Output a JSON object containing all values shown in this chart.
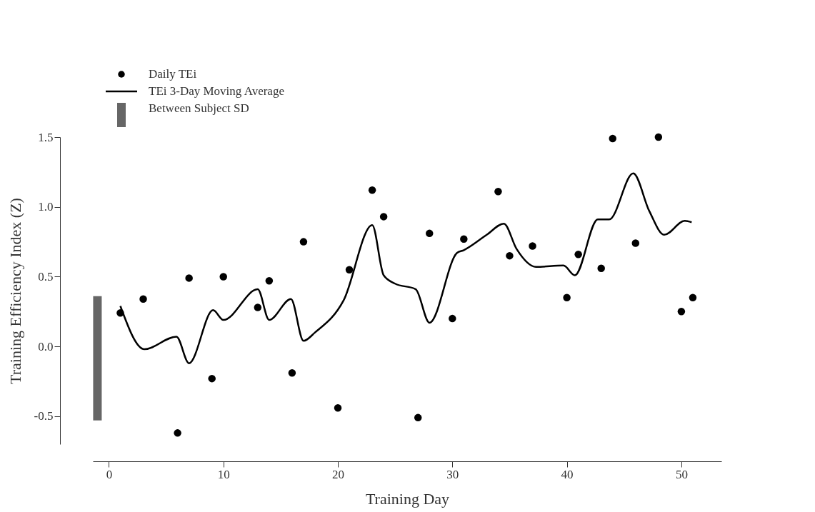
{
  "chart_data": {
    "type": "scatter",
    "xlabel": "Training Day",
    "ylabel": "Training Efficiency Index (Z)",
    "xlim": [
      -1.4,
      53.5
    ],
    "ylim": [
      -0.7,
      1.5
    ],
    "xticks": [
      0,
      10,
      20,
      30,
      40,
      50
    ],
    "yticks": [
      {
        "value": -0.5,
        "label": "-0.5"
      },
      {
        "value": 0,
        "label": "0.0"
      },
      {
        "value": 0.5,
        "label": "0.5"
      },
      {
        "value": 1,
        "label": "1.0"
      },
      {
        "value": 1.5,
        "label": "1.5"
      }
    ],
    "grid": false,
    "legend": "top left",
    "series": [
      {
        "name": "Daily TEi",
        "marker": "circle",
        "color": "#000000",
        "x": [
          1,
          3,
          6,
          7,
          9,
          10,
          13,
          14,
          16,
          17,
          20,
          21,
          23,
          24,
          27,
          28,
          30,
          31,
          34,
          35,
          37,
          40,
          41,
          43,
          44,
          46,
          48,
          50,
          51
        ],
        "values": [
          0.24,
          0.34,
          -0.62,
          0.49,
          -0.23,
          0.5,
          0.28,
          0.47,
          -0.19,
          0.75,
          -0.44,
          0.55,
          1.12,
          0.93,
          -0.51,
          0.81,
          0.2,
          0.77,
          1.11,
          0.65,
          0.72,
          0.35,
          0.66,
          0.56,
          1.49,
          0.74,
          1.5,
          0.25,
          0.35
        ]
      },
      {
        "name": "TEi 3-Day Moving Average",
        "type": "line",
        "marker": "none",
        "line_style": "solid",
        "color": "#000000",
        "x": [
          1,
          3.1,
          5.9,
          7,
          9.1,
          10,
          13,
          14,
          15.9,
          17,
          18,
          20.5,
          23,
          24,
          25,
          26.8,
          28,
          30.4,
          31,
          33,
          34.5,
          35.6,
          37.3,
          39.7,
          40.7,
          42.7,
          43.7,
          45.8,
          47.2,
          48.5,
          50.3,
          50.9
        ],
        "values": [
          0.29,
          -0.02,
          0.07,
          -0.12,
          0.26,
          0.19,
          0.41,
          0.19,
          0.34,
          0.04,
          0.1,
          0.33,
          0.87,
          0.51,
          0.45,
          0.41,
          0.17,
          0.67,
          0.69,
          0.8,
          0.88,
          0.7,
          0.57,
          0.58,
          0.51,
          0.91,
          0.91,
          1.24,
          0.97,
          0.8,
          0.9,
          0.89
        ]
      },
      {
        "name": "Between Subject SD",
        "type": "bar",
        "color": "#666666",
        "x": [
          -1
        ],
        "base": [
          -0.53
        ],
        "values": [
          0.89
        ]
      }
    ]
  }
}
